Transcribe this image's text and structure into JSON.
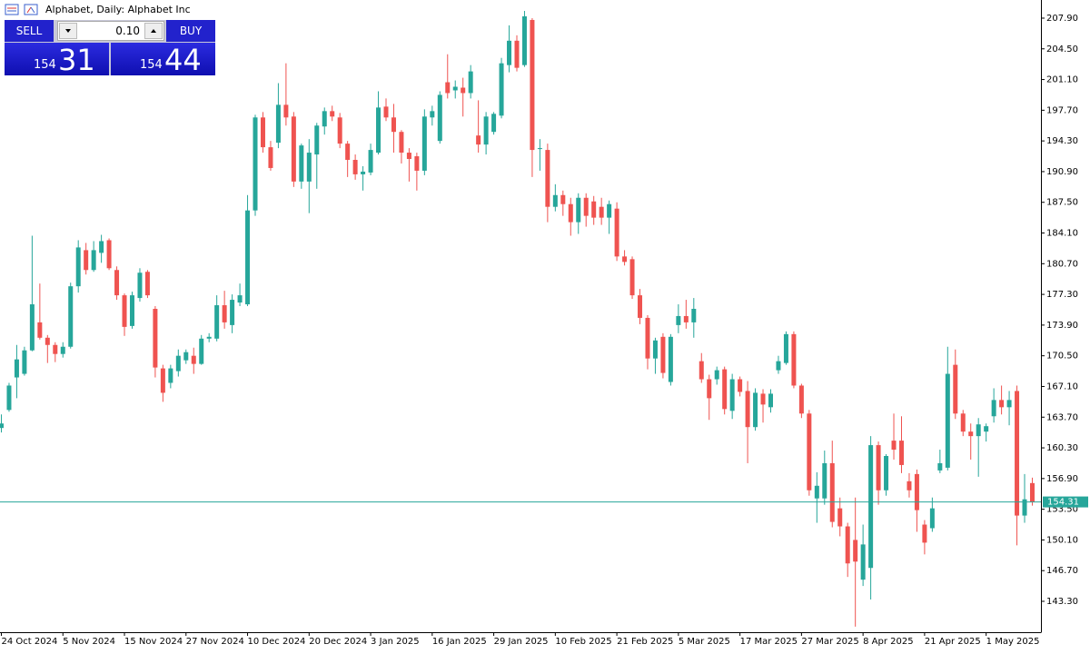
{
  "chart_data": {
    "type": "candlestick",
    "title": "Alphabet, Daily:  Alphabet Inc",
    "categories": [
      "24 Oct 2024",
      null,
      null,
      null,
      null,
      null,
      null,
      null,
      "5 Nov 2024",
      null,
      null,
      null,
      null,
      null,
      null,
      null,
      "15 Nov 2024",
      null,
      null,
      null,
      null,
      null,
      null,
      null,
      "27 Nov 2024",
      null,
      null,
      null,
      null,
      null,
      null,
      null,
      "10 Dec 2024",
      null,
      null,
      null,
      null,
      null,
      null,
      null,
      "20 Dec 2024",
      null,
      null,
      null,
      null,
      null,
      null,
      null,
      "3 Jan 2025",
      null,
      null,
      null,
      null,
      null,
      null,
      null,
      "16 Jan 2025",
      null,
      null,
      null,
      null,
      null,
      null,
      null,
      "29 Jan 2025",
      null,
      null,
      null,
      null,
      null,
      null,
      null,
      "10 Feb 2025",
      null,
      null,
      null,
      null,
      null,
      null,
      null,
      "21 Feb 2025",
      null,
      null,
      null,
      null,
      null,
      null,
      null,
      "5 Mar 2025",
      null,
      null,
      null,
      null,
      null,
      null,
      null,
      "17 Mar 2025",
      null,
      null,
      null,
      null,
      null,
      null,
      null,
      "27 Mar 2025",
      null,
      null,
      null,
      null,
      null,
      null,
      null,
      "8 Apr 2025",
      null,
      null,
      null,
      null,
      null,
      null,
      null,
      "21 Apr 2025",
      null,
      null,
      null,
      null,
      null,
      null,
      null,
      "1 May 2025",
      null,
      null,
      null,
      null,
      null,
      null
    ],
    "open": [
      162.5,
      164.5,
      168.1,
      168.5,
      171.1,
      174.2,
      172.5,
      171.7,
      170.7,
      171.5,
      178.2,
      182.2,
      180.0,
      181.9,
      183.3,
      180.0,
      177.2,
      173.8,
      176.9,
      179.8,
      175.7,
      169.1,
      167.5,
      168.8,
      170.0,
      170.5,
      169.6,
      172.4,
      172.4,
      176.1,
      173.9,
      176.4,
      176.2,
      186.6,
      196.9,
      193.6,
      194.1,
      198.3,
      197.0,
      189.8,
      189.8,
      192.8,
      195.9,
      197.6,
      196.9,
      194.0,
      192.2,
      190.6,
      190.8,
      193.0,
      198.1,
      196.9,
      195.3,
      193.0,
      192.6,
      191.0,
      196.9,
      194.3,
      200.8,
      199.9,
      200.2,
      199.6,
      194.9,
      193.9,
      195.3,
      197.1,
      202.7,
      205.4,
      202.7,
      207.7,
      193.4,
      193.3,
      187.0,
      188.3,
      187.3,
      185.3,
      188.0,
      187.6,
      187.0,
      185.8,
      186.8,
      181.5,
      181.2,
      177.2,
      174.7,
      170.2,
      172.6,
      167.6,
      173.9,
      174.9,
      174.2,
      169.9,
      167.9,
      167.9,
      169.0,
      164.4,
      167.9,
      166.6,
      162.6,
      166.3,
      164.8,
      168.9,
      169.7,
      172.9,
      167.2,
      164.1,
      154.7,
      154.7,
      158.6,
      153.6,
      151.6,
      150.1,
      145.7,
      147.0,
      160.6,
      155.6,
      161.1,
      161.1,
      156.6,
      157.4,
      151.8,
      151.4,
      157.8,
      158.1,
      169.5,
      164.1,
      162.1,
      161.6,
      162.1,
      163.8,
      165.6,
      164.8,
      166.6,
      152.8,
      156.4
    ],
    "high": [
      164.0,
      167.5,
      171.7,
      171.5,
      183.8,
      178.5,
      172.8,
      172.0,
      172.0,
      178.6,
      183.3,
      183.0,
      183.2,
      183.9,
      183.5,
      180.4,
      177.4,
      177.6,
      180.2,
      180.0,
      176.0,
      169.5,
      169.5,
      171.2,
      171.2,
      171.4,
      172.8,
      173.0,
      177.2,
      177.7,
      177.3,
      178.5,
      188.3,
      197.2,
      197.5,
      194.3,
      200.7,
      202.9,
      197.5,
      194.0,
      194.5,
      196.3,
      198.0,
      198.2,
      197.4,
      194.3,
      192.8,
      191.5,
      194.0,
      199.8,
      199.0,
      198.4,
      195.5,
      193.5,
      193.0,
      197.8,
      198.2,
      199.8,
      203.9,
      201.0,
      201.3,
      202.7,
      198.8,
      197.5,
      197.5,
      203.5,
      207.1,
      206.0,
      208.7,
      207.9,
      194.5,
      194.0,
      189.5,
      188.8,
      188.0,
      188.5,
      188.5,
      188.2,
      188.0,
      187.7,
      187.5,
      182.2,
      181.5,
      177.9,
      175.0,
      172.5,
      173.0,
      172.9,
      176.2,
      176.7,
      176.9,
      170.8,
      168.4,
      169.3,
      169.3,
      168.5,
      168.2,
      167.7,
      166.9,
      166.8,
      166.8,
      170.5,
      173.2,
      173.2,
      167.4,
      164.5,
      157.6,
      160.0,
      161.1,
      154.8,
      152.0,
      154.8,
      151.8,
      161.6,
      161.0,
      159.6,
      164.1,
      163.8,
      157.5,
      157.9,
      152.3,
      154.8,
      160.1,
      171.5,
      171.2,
      164.5,
      163.0,
      163.6,
      163.0,
      166.9,
      167.2,
      166.6,
      167.2,
      157.4,
      157.0
    ],
    "low": [
      162.0,
      164.3,
      165.8,
      168.3,
      171.0,
      172.3,
      169.7,
      169.8,
      170.3,
      171.3,
      177.5,
      179.5,
      179.8,
      180.8,
      180.0,
      176.7,
      172.7,
      173.5,
      176.5,
      176.9,
      168.1,
      165.4,
      166.9,
      168.2,
      169.6,
      168.5,
      169.5,
      172.0,
      172.1,
      173.5,
      173.0,
      176.0,
      176.0,
      186.0,
      193.0,
      191.0,
      193.5,
      196.0,
      189.2,
      189.0,
      186.3,
      189.0,
      195.0,
      196.5,
      193.5,
      190.3,
      190.0,
      188.8,
      190.5,
      192.8,
      196.5,
      193.0,
      191.8,
      189.8,
      188.8,
      190.5,
      196.0,
      194.0,
      199.0,
      199.0,
      197.0,
      199.0,
      193.0,
      192.8,
      195.0,
      196.8,
      201.9,
      202.0,
      202.5,
      190.3,
      191.0,
      185.3,
      186.5,
      186.0,
      183.8,
      184.0,
      184.8,
      185.0,
      185.0,
      184.0,
      181.0,
      180.5,
      176.8,
      174.0,
      169.0,
      168.5,
      168.0,
      167.2,
      173.0,
      173.5,
      172.5,
      167.5,
      163.4,
      167.3,
      164.0,
      163.5,
      166.0,
      158.6,
      162.2,
      163.1,
      164.2,
      168.5,
      169.5,
      166.9,
      163.6,
      155.0,
      152.0,
      154.0,
      151.5,
      150.5,
      146.0,
      140.5,
      145.0,
      143.5,
      154.0,
      155.0,
      159.0,
      157.5,
      154.8,
      151.0,
      148.5,
      151.0,
      157.5,
      157.8,
      163.5,
      161.6,
      159.0,
      157.1,
      161.0,
      163.1,
      164.0,
      162.8,
      149.5,
      152.0,
      153.9
    ],
    "close": [
      163.0,
      167.2,
      170.1,
      171.1,
      176.2,
      172.5,
      171.7,
      170.7,
      171.5,
      178.2,
      182.5,
      180.0,
      182.2,
      183.2,
      180.2,
      177.2,
      173.7,
      177.2,
      179.7,
      177.2,
      169.2,
      166.4,
      169.1,
      170.5,
      170.9,
      169.6,
      172.4,
      172.6,
      176.1,
      174.2,
      176.7,
      177.2,
      186.6,
      196.9,
      193.6,
      191.3,
      198.3,
      196.9,
      189.8,
      193.8,
      193.0,
      196.0,
      197.6,
      197.0,
      194.0,
      192.2,
      190.6,
      190.9,
      193.3,
      198.0,
      196.9,
      195.3,
      193.0,
      192.3,
      191.0,
      197.0,
      197.6,
      199.4,
      199.6,
      200.3,
      199.6,
      202.0,
      193.9,
      197.0,
      197.3,
      202.9,
      205.4,
      202.4,
      208.1,
      193.3,
      193.5,
      187.0,
      188.3,
      187.3,
      185.3,
      188.0,
      186.0,
      185.8,
      185.8,
      187.3,
      181.5,
      180.9,
      177.2,
      174.7,
      170.2,
      172.2,
      168.6,
      172.6,
      174.9,
      174.2,
      175.7,
      167.9,
      165.8,
      168.9,
      164.6,
      167.9,
      166.5,
      162.6,
      166.4,
      165.1,
      166.3,
      169.9,
      172.9,
      167.2,
      164.1,
      155.6,
      156.1,
      158.6,
      152.1,
      151.6,
      147.5,
      147.7,
      149.6,
      160.6,
      155.6,
      159.4,
      160.1,
      158.4,
      155.6,
      153.4,
      149.8,
      153.6,
      158.6,
      168.5,
      164.1,
      162.1,
      161.6,
      162.9,
      162.7,
      165.6,
      164.8,
      165.6,
      152.8,
      154.6,
      154.31
    ],
    "up_color": "#26a69a",
    "down_color": "#ef5350",
    "ylim": [
      139.88,
      209.91
    ],
    "yticks": [
      {
        "value": 143.3,
        "label": "143.30"
      },
      {
        "value": 146.7,
        "label": "146.70"
      },
      {
        "value": 150.1,
        "label": "150.10"
      },
      {
        "value": 153.5,
        "label": "153.50"
      },
      {
        "value": 156.9,
        "label": "156.90"
      },
      {
        "value": 160.3,
        "label": "160.30"
      },
      {
        "value": 163.7,
        "label": "163.70"
      },
      {
        "value": 167.1,
        "label": "167.10"
      },
      {
        "value": 170.5,
        "label": "170.50"
      },
      {
        "value": 173.9,
        "label": "173.90"
      },
      {
        "value": 177.3,
        "label": "177.30"
      },
      {
        "value": 180.7,
        "label": "180.70"
      },
      {
        "value": 184.1,
        "label": "184.10"
      },
      {
        "value": 187.5,
        "label": "187.50"
      },
      {
        "value": 190.9,
        "label": "190.90"
      },
      {
        "value": 194.3,
        "label": "194.30"
      },
      {
        "value": 197.7,
        "label": "197.70"
      },
      {
        "value": 201.1,
        "label": "201.10"
      },
      {
        "value": 204.5,
        "label": "204.50"
      },
      {
        "value": 207.9,
        "label": "207.90"
      }
    ],
    "last_price": {
      "value": 154.31,
      "label": "154.31"
    },
    "grid": false
  },
  "trade_panel": {
    "sell": "SELL",
    "buy": "BUY",
    "lot": "0.10",
    "bid": {
      "prefix": "154",
      "digits": "31"
    },
    "ask": {
      "prefix": "154",
      "digits": "44"
    }
  }
}
